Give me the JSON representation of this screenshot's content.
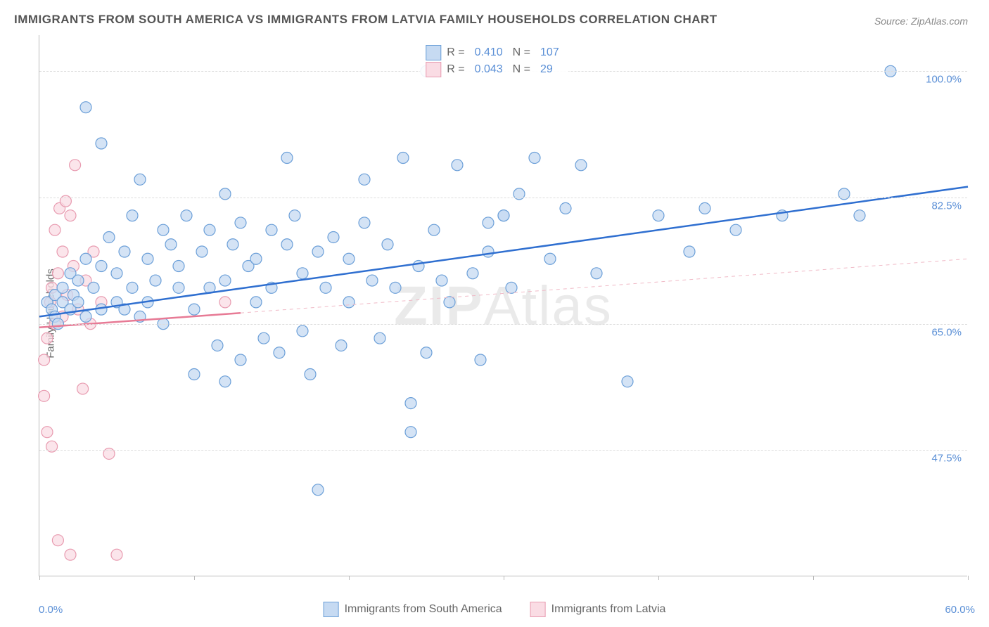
{
  "title": "IMMIGRANTS FROM SOUTH AMERICA VS IMMIGRANTS FROM LATVIA FAMILY HOUSEHOLDS CORRELATION CHART",
  "source": "Source: ZipAtlas.com",
  "watermark": "ZIPAtlas",
  "y_axis_label": "Family Households",
  "chart": {
    "type": "scatter",
    "background_color": "#ffffff",
    "grid_color": "#dddddd",
    "axis_color": "#bbbbbb",
    "text_color": "#666666",
    "value_color": "#5a8fd6",
    "xlim": [
      0,
      60
    ],
    "ylim": [
      30,
      105
    ],
    "y_gridlines": [
      47.5,
      65.0,
      82.5,
      100.0
    ],
    "y_tick_labels": [
      "47.5%",
      "65.0%",
      "82.5%",
      "100.0%"
    ],
    "x_ticks": [
      0,
      10,
      20,
      30,
      40,
      50,
      60
    ],
    "x_tick_labels": {
      "0": "0.0%",
      "60": "60.0%"
    },
    "marker_radius": 8,
    "marker_stroke_width": 1.2,
    "trend_line_width": 2.5,
    "dashed_line_width": 1,
    "title_fontsize": 17,
    "label_fontsize": 15,
    "legend_fontsize": 16
  },
  "series": [
    {
      "name": "Immigrants from South America",
      "r_value": "0.410",
      "n_value": "107",
      "marker_fill": "#c6daf2",
      "marker_stroke": "#6b9fd8",
      "swatch_fill": "#c6daf2",
      "swatch_border": "#6b9fd8",
      "trend_color": "#2f6fd0",
      "trend_start": {
        "x": 0,
        "y": 66
      },
      "trend_end": {
        "x": 60,
        "y": 84
      },
      "points": [
        {
          "x": 0.5,
          "y": 68
        },
        {
          "x": 0.8,
          "y": 67
        },
        {
          "x": 1,
          "y": 66
        },
        {
          "x": 1,
          "y": 69
        },
        {
          "x": 1.2,
          "y": 65
        },
        {
          "x": 1.5,
          "y": 68
        },
        {
          "x": 1.5,
          "y": 70
        },
        {
          "x": 2,
          "y": 67
        },
        {
          "x": 2,
          "y": 72
        },
        {
          "x": 2.2,
          "y": 69
        },
        {
          "x": 2.5,
          "y": 68
        },
        {
          "x": 2.5,
          "y": 71
        },
        {
          "x": 3,
          "y": 66
        },
        {
          "x": 3,
          "y": 74
        },
        {
          "x": 3.5,
          "y": 70
        },
        {
          "x": 4,
          "y": 67
        },
        {
          "x": 4,
          "y": 73
        },
        {
          "x": 4.5,
          "y": 77
        },
        {
          "x": 5,
          "y": 68
        },
        {
          "x": 5,
          "y": 72
        },
        {
          "x": 5.5,
          "y": 67
        },
        {
          "x": 5.5,
          "y": 75
        },
        {
          "x": 6,
          "y": 70
        },
        {
          "x": 6,
          "y": 80
        },
        {
          "x": 6.5,
          "y": 66
        },
        {
          "x": 7,
          "y": 74
        },
        {
          "x": 7,
          "y": 68
        },
        {
          "x": 7.5,
          "y": 71
        },
        {
          "x": 8,
          "y": 78
        },
        {
          "x": 8,
          "y": 65
        },
        {
          "x": 8.5,
          "y": 76
        },
        {
          "x": 9,
          "y": 70
        },
        {
          "x": 9,
          "y": 73
        },
        {
          "x": 9.5,
          "y": 80
        },
        {
          "x": 10,
          "y": 67
        },
        {
          "x": 10,
          "y": 58
        },
        {
          "x": 10.5,
          "y": 75
        },
        {
          "x": 11,
          "y": 70
        },
        {
          "x": 11,
          "y": 78
        },
        {
          "x": 11.5,
          "y": 62
        },
        {
          "x": 12,
          "y": 71
        },
        {
          "x": 12,
          "y": 57
        },
        {
          "x": 12.5,
          "y": 76
        },
        {
          "x": 13,
          "y": 79
        },
        {
          "x": 13,
          "y": 60
        },
        {
          "x": 13.5,
          "y": 73
        },
        {
          "x": 14,
          "y": 68
        },
        {
          "x": 14,
          "y": 74
        },
        {
          "x": 14.5,
          "y": 63
        },
        {
          "x": 15,
          "y": 78
        },
        {
          "x": 15,
          "y": 70
        },
        {
          "x": 15.5,
          "y": 61
        },
        {
          "x": 16,
          "y": 76
        },
        {
          "x": 16.5,
          "y": 80
        },
        {
          "x": 17,
          "y": 64
        },
        {
          "x": 17,
          "y": 72
        },
        {
          "x": 17.5,
          "y": 58
        },
        {
          "x": 18,
          "y": 75
        },
        {
          "x": 18,
          "y": 42
        },
        {
          "x": 18.5,
          "y": 70
        },
        {
          "x": 19,
          "y": 77
        },
        {
          "x": 19.5,
          "y": 62
        },
        {
          "x": 20,
          "y": 74
        },
        {
          "x": 20,
          "y": 68
        },
        {
          "x": 21,
          "y": 79
        },
        {
          "x": 21.5,
          "y": 71
        },
        {
          "x": 22,
          "y": 63
        },
        {
          "x": 22.5,
          "y": 76
        },
        {
          "x": 23,
          "y": 70
        },
        {
          "x": 23.5,
          "y": 88
        },
        {
          "x": 24,
          "y": 54
        },
        {
          "x": 24,
          "y": 50
        },
        {
          "x": 24.5,
          "y": 73
        },
        {
          "x": 25,
          "y": 61
        },
        {
          "x": 25.5,
          "y": 78
        },
        {
          "x": 26,
          "y": 71
        },
        {
          "x": 26.5,
          "y": 68
        },
        {
          "x": 27,
          "y": 87
        },
        {
          "x": 28,
          "y": 72
        },
        {
          "x": 28.5,
          "y": 60
        },
        {
          "x": 29,
          "y": 79
        },
        {
          "x": 29,
          "y": 75
        },
        {
          "x": 30,
          "y": 80
        },
        {
          "x": 30,
          "y": 80
        },
        {
          "x": 30.5,
          "y": 70
        },
        {
          "x": 31,
          "y": 83
        },
        {
          "x": 32,
          "y": 88
        },
        {
          "x": 33,
          "y": 74
        },
        {
          "x": 34,
          "y": 81
        },
        {
          "x": 35,
          "y": 87
        },
        {
          "x": 36,
          "y": 72
        },
        {
          "x": 38,
          "y": 57
        },
        {
          "x": 40,
          "y": 80
        },
        {
          "x": 42,
          "y": 75
        },
        {
          "x": 43,
          "y": 81
        },
        {
          "x": 45,
          "y": 78
        },
        {
          "x": 48,
          "y": 80
        },
        {
          "x": 52,
          "y": 83
        },
        {
          "x": 53,
          "y": 80
        },
        {
          "x": 55,
          "y": 100
        },
        {
          "x": 25,
          "y": 100
        },
        {
          "x": 3,
          "y": 95
        },
        {
          "x": 4,
          "y": 90
        },
        {
          "x": 6.5,
          "y": 85
        },
        {
          "x": 12,
          "y": 83
        },
        {
          "x": 21,
          "y": 85
        },
        {
          "x": 16,
          "y": 88
        }
      ]
    },
    {
      "name": "Immigrants from Latvia",
      "r_value": "0.043",
      "n_value": "29",
      "marker_fill": "#fadce4",
      "marker_stroke": "#e89bb0",
      "swatch_fill": "#fadce4",
      "swatch_border": "#e89bb0",
      "trend_color": "#e77a95",
      "trend_dashed_color": "#f0b9c6",
      "trend_start": {
        "x": 0,
        "y": 64.5
      },
      "trend_end_solid": {
        "x": 13,
        "y": 66.5
      },
      "trend_end_dashed": {
        "x": 60,
        "y": 74
      },
      "points": [
        {
          "x": 0.3,
          "y": 55
        },
        {
          "x": 0.3,
          "y": 60
        },
        {
          "x": 0.5,
          "y": 63
        },
        {
          "x": 0.5,
          "y": 50
        },
        {
          "x": 0.7,
          "y": 68
        },
        {
          "x": 0.8,
          "y": 70
        },
        {
          "x": 0.8,
          "y": 48
        },
        {
          "x": 1,
          "y": 65
        },
        {
          "x": 1,
          "y": 78
        },
        {
          "x": 1.2,
          "y": 72
        },
        {
          "x": 1.2,
          "y": 35
        },
        {
          "x": 1.3,
          "y": 81
        },
        {
          "x": 1.5,
          "y": 66
        },
        {
          "x": 1.5,
          "y": 75
        },
        {
          "x": 1.7,
          "y": 82
        },
        {
          "x": 1.8,
          "y": 69
        },
        {
          "x": 2,
          "y": 80
        },
        {
          "x": 2,
          "y": 33
        },
        {
          "x": 2.2,
          "y": 73
        },
        {
          "x": 2.3,
          "y": 87
        },
        {
          "x": 2.5,
          "y": 67
        },
        {
          "x": 2.8,
          "y": 56
        },
        {
          "x": 3,
          "y": 71
        },
        {
          "x": 3.3,
          "y": 65
        },
        {
          "x": 3.5,
          "y": 75
        },
        {
          "x": 4,
          "y": 68
        },
        {
          "x": 4.5,
          "y": 47
        },
        {
          "x": 5,
          "y": 33
        },
        {
          "x": 12,
          "y": 68
        }
      ]
    }
  ],
  "legend_labels": {
    "r_label": "R =",
    "n_label": "N ="
  }
}
